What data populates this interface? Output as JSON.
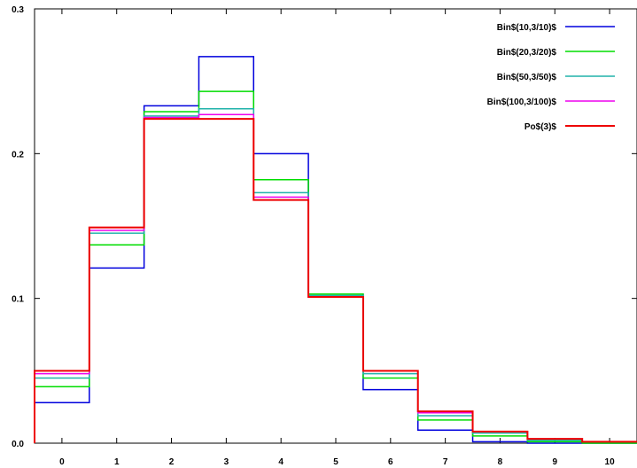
{
  "chart_data": {
    "type": "line",
    "step": "histogram",
    "x": [
      0,
      1,
      2,
      3,
      4,
      5,
      6,
      7,
      8,
      9,
      10
    ],
    "xlim": [
      -0.5,
      10.5
    ],
    "ylim": [
      0,
      0.3
    ],
    "xticks": [
      "0",
      "1",
      "2",
      "3",
      "4",
      "5",
      "6",
      "7",
      "8",
      "9",
      "10"
    ],
    "yticks": [
      "0.0",
      "0.1",
      "0.2",
      "0.3"
    ],
    "ytick_values": [
      0,
      0.1,
      0.2,
      0.3
    ],
    "grid": false,
    "legend_position": "top-right",
    "series": [
      {
        "name": "Bin$(10,3/10)$",
        "color": "#0000dd",
        "values": [
          0.028,
          0.121,
          0.233,
          0.267,
          0.2,
          0.103,
          0.037,
          0.009,
          0.001,
          0.0,
          0.0
        ]
      },
      {
        "name": "Bin$(20,3/20)$",
        "color": "#00dd00",
        "values": [
          0.039,
          0.137,
          0.229,
          0.243,
          0.182,
          0.103,
          0.045,
          0.016,
          0.005,
          0.001,
          0.0
        ]
      },
      {
        "name": "Bin$(50,3/50)$",
        "color": "#20b2aa",
        "values": [
          0.045,
          0.145,
          0.226,
          0.231,
          0.173,
          0.102,
          0.048,
          0.019,
          0.007,
          0.002,
          0.001
        ]
      },
      {
        "name": "Bin$(100,3/100)$",
        "color": "#ee00ee",
        "values": [
          0.048,
          0.147,
          0.225,
          0.227,
          0.17,
          0.101,
          0.05,
          0.021,
          0.008,
          0.003,
          0.001
        ]
      },
      {
        "name": "Po$(3)$",
        "color": "#ee0000",
        "values": [
          0.05,
          0.149,
          0.224,
          0.224,
          0.168,
          0.101,
          0.05,
          0.022,
          0.008,
          0.003,
          0.001
        ]
      }
    ]
  }
}
